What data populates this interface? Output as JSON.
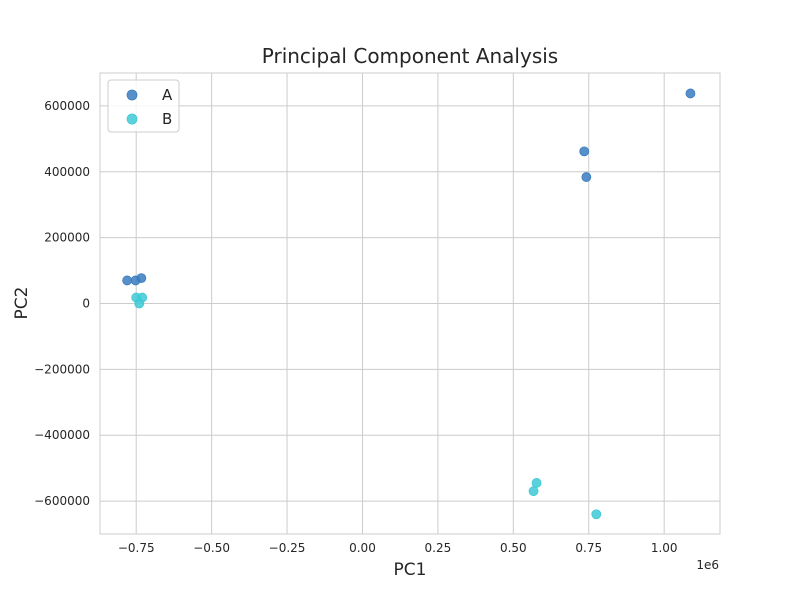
{
  "chart_data": {
    "type": "scatter",
    "title": "Principal Component Analysis",
    "xlabel": "PC1",
    "ylabel": "PC2",
    "x_offset_label": "1e6",
    "xlim": [
      -870000,
      1185000
    ],
    "ylim": [
      -700000,
      700000
    ],
    "x_ticks": [
      -750000,
      -500000,
      -250000,
      0,
      250000,
      500000,
      750000,
      1000000
    ],
    "x_tick_labels": [
      "−0.75",
      "−0.50",
      "−0.25",
      "0.00",
      "0.25",
      "0.50",
      "0.75",
      "1.00"
    ],
    "y_ticks": [
      -600000,
      -400000,
      -200000,
      0,
      200000,
      400000,
      600000
    ],
    "y_tick_labels": [
      "−600000",
      "−400000",
      "−200000",
      "0",
      "200000",
      "400000",
      "600000"
    ],
    "grid": true,
    "legend_position": "top-left",
    "series": [
      {
        "name": "A",
        "color": "#3a7dbf",
        "points": [
          {
            "x": -780000,
            "y": 70000
          },
          {
            "x": -752000,
            "y": 70000
          },
          {
            "x": -733000,
            "y": 77000
          },
          {
            "x": 735000,
            "y": 462000
          },
          {
            "x": 742000,
            "y": 384000
          },
          {
            "x": 1087000,
            "y": 638000
          }
        ]
      },
      {
        "name": "B",
        "color": "#3ec9d6",
        "points": [
          {
            "x": -750000,
            "y": 18000
          },
          {
            "x": -730000,
            "y": 18000
          },
          {
            "x": -740000,
            "y": 0
          },
          {
            "x": 577000,
            "y": -545000
          },
          {
            "x": 567000,
            "y": -570000
          },
          {
            "x": 775000,
            "y": -640000
          }
        ]
      }
    ]
  }
}
